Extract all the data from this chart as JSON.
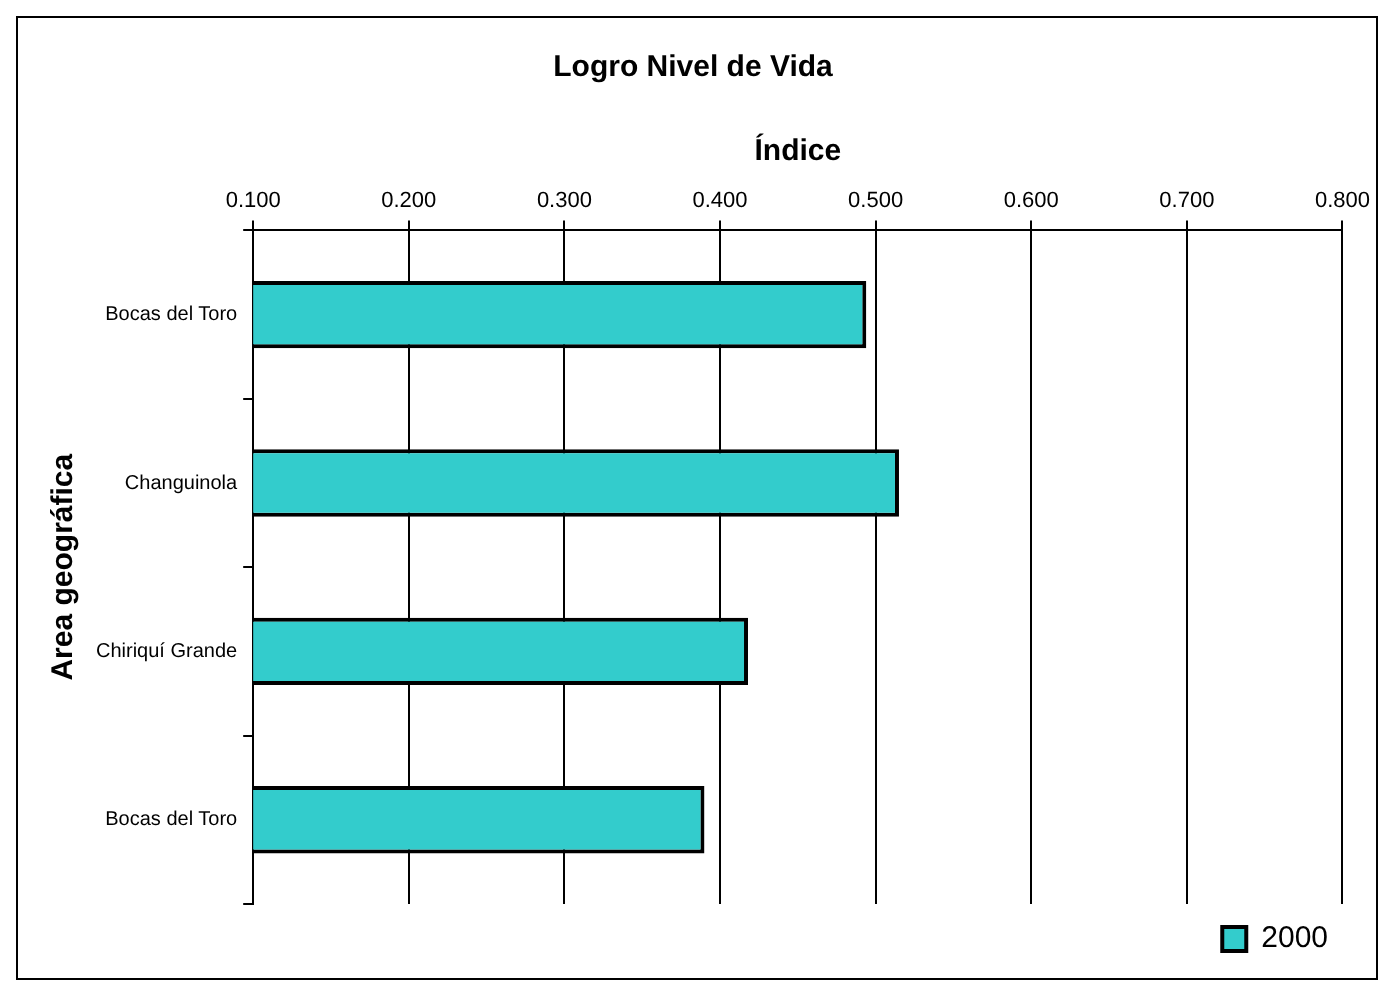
{
  "chart_data": {
    "type": "bar",
    "orientation": "horizontal",
    "title": "Logro Nivel de Vida",
    "xlabel": "Índice",
    "ylabel": "Area geográfica",
    "categories": [
      "Bocas del Toro",
      "Changuinola",
      "Chiriquí Grande",
      "Bocas del Toro"
    ],
    "series": [
      {
        "name": "2000",
        "color": "#33cccc",
        "values": [
          0.494,
          0.515,
          0.418,
          0.39
        ]
      }
    ],
    "xlim": [
      0.1,
      0.8
    ],
    "xticks": [
      {
        "value": 0.1,
        "label": "0.100"
      },
      {
        "value": 0.2,
        "label": "0.200"
      },
      {
        "value": 0.3,
        "label": "0.300"
      },
      {
        "value": 0.4,
        "label": "0.400"
      },
      {
        "value": 0.5,
        "label": "0.500"
      },
      {
        "value": 0.6,
        "label": "0.600"
      },
      {
        "value": 0.7,
        "label": "0.700"
      },
      {
        "value": 0.8,
        "label": "0.800"
      }
    ],
    "grid": "x",
    "legend": "bottom right"
  }
}
